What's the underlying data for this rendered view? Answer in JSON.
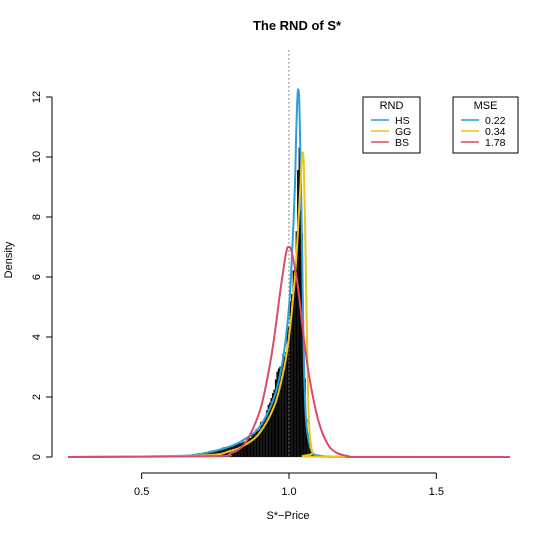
{
  "chart_data": {
    "type": "histogram-density",
    "title": "The RND of S*",
    "xlabel": "S*−Price",
    "ylabel": "Density",
    "xlim": [
      0.25,
      1.75
    ],
    "ylim": [
      0,
      12.2
    ],
    "x_ticks": [
      0.5,
      1.0,
      1.5
    ],
    "x_tick_labels": [
      "0.5",
      "1.0",
      "1.5"
    ],
    "y_ticks": [
      0,
      2,
      4,
      6,
      8,
      10,
      12
    ],
    "y_tick_labels": [
      "0",
      "2",
      "4",
      "6",
      "8",
      "10",
      "12"
    ],
    "reference_line_x": 1.0,
    "histogram": {
      "color": "#000000",
      "bin_width": 0.005,
      "x": [
        0.6,
        0.65,
        0.7,
        0.75,
        0.8,
        0.85,
        0.88,
        0.9,
        0.92,
        0.94,
        0.96,
        0.98,
        1.0,
        1.01,
        1.02,
        1.025,
        1.03,
        1.035,
        1.04,
        1.045,
        1.05,
        1.06,
        1.07,
        1.08,
        1.1
      ],
      "y": [
        0.03,
        0.06,
        0.12,
        0.22,
        0.35,
        0.55,
        0.75,
        1.0,
        1.4,
        1.9,
        2.6,
        3.3,
        4.4,
        5.2,
        6.3,
        7.5,
        9.3,
        10.2,
        9.0,
        7.0,
        4.0,
        1.2,
        0.3,
        0.08,
        0.02
      ]
    },
    "series": [
      {
        "name": "HS",
        "color": "#2d9fd8",
        "x": [
          0.25,
          0.6,
          0.7,
          0.8,
          0.85,
          0.9,
          0.95,
          0.98,
          1.0,
          1.01,
          1.02,
          1.025,
          1.03,
          1.035,
          1.04,
          1.045,
          1.05,
          1.055,
          1.06,
          1.07,
          1.08,
          1.1,
          1.2,
          1.75
        ],
        "y": [
          0,
          0.03,
          0.1,
          0.35,
          0.6,
          1.0,
          2.0,
          3.3,
          5.0,
          6.7,
          9.0,
          11.0,
          12.2,
          11.8,
          9.5,
          6.5,
          3.5,
          1.8,
          1.0,
          0.4,
          0.15,
          0.05,
          0,
          0
        ]
      },
      {
        "name": "GG",
        "color": "#f0c419",
        "x": [
          0.25,
          0.7,
          0.8,
          0.85,
          0.9,
          0.95,
          0.98,
          1.0,
          1.02,
          1.03,
          1.04,
          1.045,
          1.05,
          1.055,
          1.06,
          1.065,
          1.07,
          1.08,
          1.1,
          1.75
        ],
        "y": [
          0,
          0.05,
          0.2,
          0.4,
          0.8,
          1.7,
          2.8,
          4.0,
          6.0,
          7.5,
          9.3,
          10.1,
          9.8,
          7.5,
          4.5,
          2.0,
          0.8,
          0.15,
          0.01,
          0
        ]
      },
      {
        "name": "BS",
        "color": "#d94c6a",
        "x": [
          0.25,
          0.75,
          0.8,
          0.85,
          0.9,
          0.93,
          0.95,
          0.97,
          0.99,
          1.0,
          1.01,
          1.03,
          1.05,
          1.07,
          1.1,
          1.13,
          1.16,
          1.2,
          1.25,
          1.75
        ],
        "y": [
          0,
          0.03,
          0.12,
          0.45,
          1.5,
          2.8,
          4.0,
          5.5,
          6.8,
          7.0,
          6.8,
          5.7,
          4.0,
          2.6,
          1.2,
          0.45,
          0.15,
          0.03,
          0,
          0
        ]
      }
    ],
    "legends": [
      {
        "title": "RND",
        "entries": [
          {
            "label": "HS",
            "color": "#2d9fd8"
          },
          {
            "label": "GG",
            "color": "#f0c419"
          },
          {
            "label": "BS",
            "color": "#d94c6a"
          }
        ]
      },
      {
        "title": "MSE",
        "entries": [
          {
            "label": "0.22",
            "color": "#2d9fd8"
          },
          {
            "label": "0.34",
            "color": "#f0c419"
          },
          {
            "label": "1.78",
            "color": "#d94c6a"
          }
        ]
      }
    ]
  }
}
